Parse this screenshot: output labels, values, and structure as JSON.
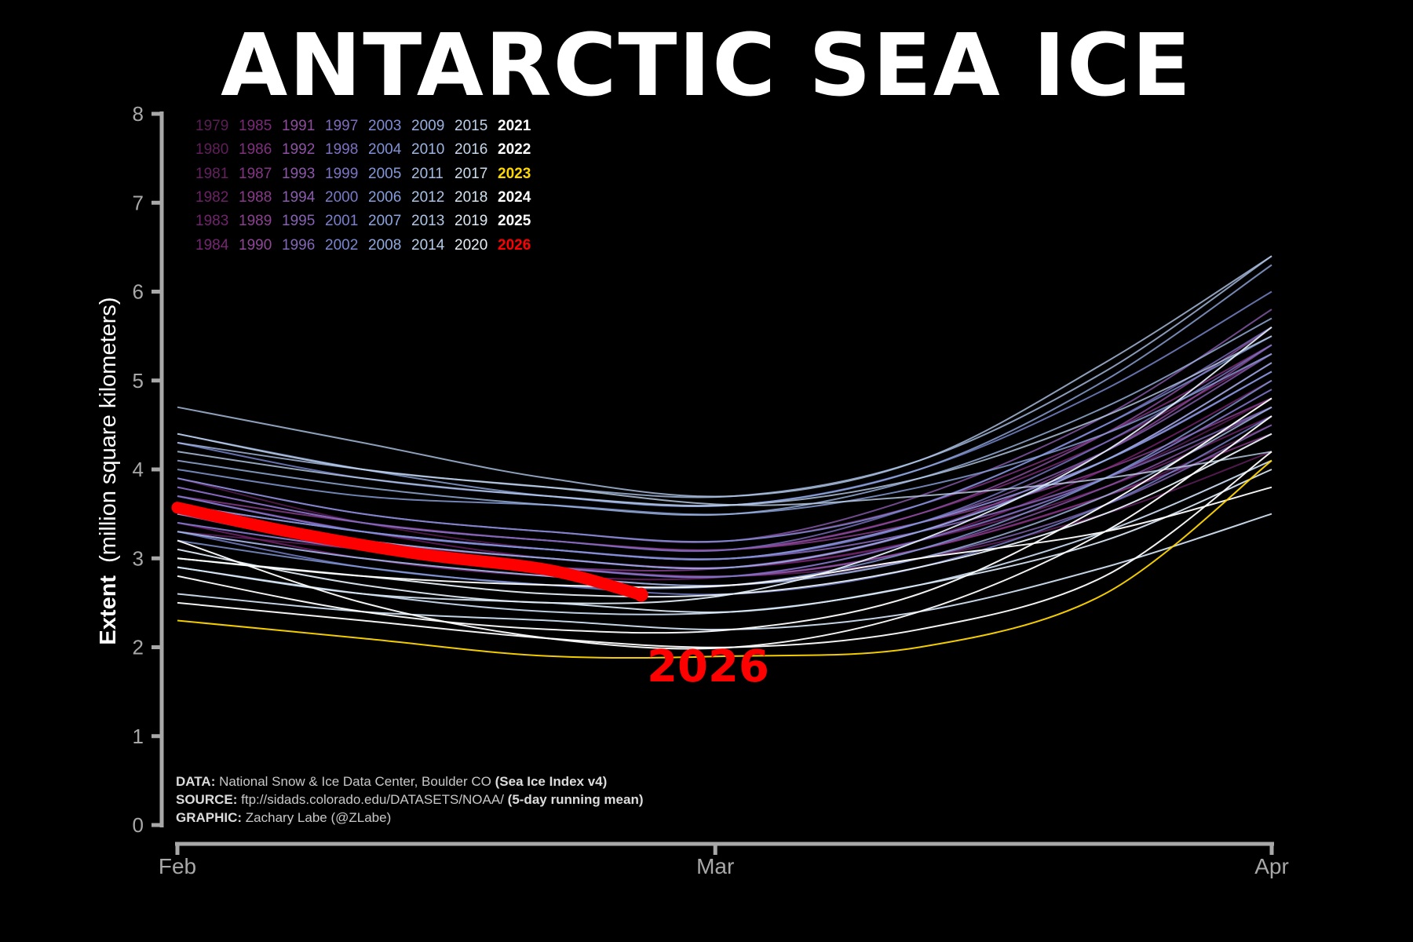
{
  "chart_data": {
    "type": "line",
    "title": "ANTARCTIC SEA ICE",
    "ylabel_bold": "Extent",
    "ylabel_rest": "(million square kilometers)",
    "x_ticks": [
      "Feb",
      "Mar",
      "Apr"
    ],
    "y_ticks": [
      "0",
      "1",
      "2",
      "3",
      "4",
      "5",
      "6",
      "7",
      "8"
    ],
    "ylim": [
      0,
      8
    ],
    "x_domain_days": [
      0,
      59
    ],
    "grid": false,
    "legend_placement": "top-left",
    "highlight_year": "2026",
    "highlight_color": "#ff0000",
    "legend_columns": [
      [
        "1979",
        "1980",
        "1981",
        "1982",
        "1983",
        "1984"
      ],
      [
        "1985",
        "1986",
        "1987",
        "1988",
        "1989",
        "1990"
      ],
      [
        "1991",
        "1992",
        "1993",
        "1994",
        "1995",
        "1996"
      ],
      [
        "1997",
        "1998",
        "1999",
        "2000",
        "2001",
        "2002"
      ],
      [
        "2003",
        "2004",
        "2005",
        "2006",
        "2007",
        "2008"
      ],
      [
        "2009",
        "2010",
        "2011",
        "2012",
        "2013",
        "2014"
      ],
      [
        "2015",
        "2016",
        "2017",
        "2018",
        "2019",
        "2020"
      ],
      [
        "2021",
        "2022",
        "2023",
        "2024",
        "2025",
        "2026"
      ]
    ],
    "year_colors": {
      "1979": "#5a1f55",
      "1980": "#601f5b",
      "1981": "#652060",
      "1982": "#6b2266",
      "1983": "#71246c",
      "1984": "#772672",
      "1985": "#7b2a78",
      "1986": "#80307e",
      "1987": "#853585",
      "1988": "#893a8b",
      "1989": "#8c4091",
      "1990": "#8f4697",
      "1991": "#8f4c9d",
      "1992": "#8e51a3",
      "1993": "#8c56a9",
      "1994": "#8a5cae",
      "1995": "#8761b3",
      "1996": "#8466b8",
      "1997": "#816bbd",
      "1998": "#7e70c2",
      "1999": "#7b75c6",
      "2000": "#7a7bca",
      "2001": "#7a80ce",
      "2002": "#7b86d1",
      "2003": "#7d8cd4",
      "2004": "#7f92d7",
      "2005": "#8398da",
      "2006": "#879edc",
      "2007": "#8ca4de",
      "2008": "#92aae0",
      "2009": "#98b0e2",
      "2010": "#9eb6e4",
      "2011": "#a4bce5",
      "2012": "#abc2e7",
      "2013": "#b1c7e8",
      "2014": "#b8cdea",
      "2015": "#bfd2eb",
      "2016": "#c6d8ed",
      "2017": "#cddef0",
      "2018": "#d5e4f2",
      "2019": "#dde9f4",
      "2020": "#e6eff7",
      "2021": "#ffffff",
      "2022": "#ffffff",
      "2023": "#ffd700",
      "2024": "#ffffff",
      "2025": "#ffffff",
      "2026": "#ff0000"
    },
    "series_points_x": [
      0,
      10,
      20,
      30,
      40,
      50,
      59
    ],
    "series": [
      {
        "name": "1979",
        "values": [
          3.9,
          3.4,
          3.1,
          3.0,
          3.3,
          3.9,
          4.8
        ]
      },
      {
        "name": "1980",
        "values": [
          3.6,
          3.2,
          2.9,
          2.8,
          3.1,
          3.7,
          4.5
        ]
      },
      {
        "name": "1981",
        "values": [
          3.3,
          3.1,
          2.9,
          2.8,
          3.0,
          3.5,
          4.2
        ]
      },
      {
        "name": "1982",
        "values": [
          3.7,
          3.3,
          3.0,
          2.9,
          3.2,
          3.9,
          4.9
        ]
      },
      {
        "name": "1983",
        "values": [
          3.5,
          3.2,
          3.0,
          2.9,
          3.2,
          3.8,
          4.6
        ]
      },
      {
        "name": "1984",
        "values": [
          3.4,
          3.0,
          2.8,
          2.8,
          3.2,
          4.0,
          5.0
        ]
      },
      {
        "name": "1985",
        "values": [
          3.8,
          3.4,
          3.2,
          3.1,
          3.5,
          4.3,
          5.3
        ]
      },
      {
        "name": "1986",
        "values": [
          3.6,
          3.3,
          3.1,
          3.0,
          3.4,
          4.1,
          5.1
        ]
      },
      {
        "name": "1987",
        "values": [
          3.9,
          3.5,
          3.3,
          3.2,
          3.6,
          4.4,
          5.4
        ]
      },
      {
        "name": "1988",
        "values": [
          3.5,
          3.1,
          2.9,
          2.8,
          3.1,
          3.7,
          4.4
        ]
      },
      {
        "name": "1989",
        "values": [
          3.7,
          3.4,
          3.2,
          3.1,
          3.4,
          4.0,
          4.8
        ]
      },
      {
        "name": "1990",
        "values": [
          3.4,
          3.1,
          2.9,
          2.9,
          3.3,
          4.1,
          5.2
        ]
      },
      {
        "name": "1991",
        "values": [
          3.6,
          3.2,
          3.0,
          2.9,
          3.3,
          4.2,
          5.4
        ]
      },
      {
        "name": "1992",
        "values": [
          3.8,
          3.4,
          3.2,
          3.1,
          3.5,
          4.4,
          5.6
        ]
      },
      {
        "name": "1993",
        "values": [
          3.5,
          3.1,
          2.9,
          2.8,
          3.1,
          3.8,
          4.7
        ]
      },
      {
        "name": "1994",
        "values": [
          3.9,
          3.5,
          3.3,
          3.2,
          3.7,
          4.6,
          5.8
        ]
      },
      {
        "name": "1995",
        "values": [
          3.7,
          3.3,
          3.1,
          3.0,
          3.4,
          4.2,
          5.3
        ]
      },
      {
        "name": "1996",
        "values": [
          3.3,
          3.0,
          2.8,
          2.7,
          3.0,
          3.6,
          4.5
        ]
      },
      {
        "name": "1997",
        "values": [
          3.6,
          3.3,
          3.1,
          3.0,
          3.3,
          3.9,
          4.7
        ]
      },
      {
        "name": "1998",
        "values": [
          3.8,
          3.4,
          3.2,
          3.1,
          3.6,
          4.5,
          5.6
        ]
      },
      {
        "name": "1999",
        "values": [
          3.5,
          3.2,
          3.0,
          2.9,
          3.3,
          4.1,
          5.1
        ]
      },
      {
        "name": "2000",
        "values": [
          3.7,
          3.3,
          3.1,
          3.0,
          3.4,
          4.3,
          5.4
        ]
      },
      {
        "name": "2001",
        "values": [
          3.4,
          3.1,
          2.9,
          2.8,
          3.2,
          3.9,
          4.9
        ]
      },
      {
        "name": "2002",
        "values": [
          3.3,
          2.9,
          2.7,
          2.6,
          2.9,
          3.6,
          4.6
        ]
      },
      {
        "name": "2003",
        "values": [
          4.3,
          3.9,
          3.7,
          3.6,
          4.0,
          4.9,
          6.0
        ]
      },
      {
        "name": "2004",
        "values": [
          3.9,
          3.5,
          3.3,
          3.2,
          3.6,
          4.5,
          5.5
        ]
      },
      {
        "name": "2005",
        "values": [
          3.6,
          3.3,
          3.1,
          3.0,
          3.4,
          4.1,
          5.1
        ]
      },
      {
        "name": "2006",
        "values": [
          3.2,
          2.9,
          2.7,
          2.7,
          3.1,
          3.9,
          5.0
        ]
      },
      {
        "name": "2007",
        "values": [
          4.0,
          3.7,
          3.6,
          3.5,
          3.8,
          4.4,
          5.3
        ]
      },
      {
        "name": "2008",
        "values": [
          4.4,
          4.0,
          3.7,
          3.6,
          4.0,
          5.0,
          6.3
        ]
      },
      {
        "name": "2009",
        "values": [
          3.5,
          3.2,
          3.0,
          2.9,
          3.3,
          4.1,
          5.2
        ]
      },
      {
        "name": "2010",
        "values": [
          4.1,
          3.8,
          3.6,
          3.5,
          3.9,
          4.7,
          5.7
        ]
      },
      {
        "name": "2011",
        "values": [
          3.3,
          3.0,
          2.8,
          2.7,
          3.0,
          3.7,
          4.7
        ]
      },
      {
        "name": "2012",
        "values": [
          4.3,
          4.0,
          3.8,
          3.7,
          4.1,
          5.1,
          6.4
        ]
      },
      {
        "name": "2013",
        "values": [
          4.7,
          4.3,
          3.9,
          3.7,
          4.1,
          5.2,
          6.4
        ]
      },
      {
        "name": "2014",
        "values": [
          4.2,
          3.9,
          3.7,
          3.6,
          3.9,
          4.6,
          5.5
        ]
      },
      {
        "name": "2015",
        "values": [
          4.4,
          4.0,
          3.8,
          3.6,
          3.7,
          3.9,
          4.2
        ]
      },
      {
        "name": "2016",
        "values": [
          2.9,
          2.6,
          2.4,
          2.4,
          2.7,
          3.3,
          4.1
        ]
      },
      {
        "name": "2017",
        "values": [
          2.6,
          2.4,
          2.3,
          2.2,
          2.4,
          2.9,
          3.5
        ]
      },
      {
        "name": "2018",
        "values": [
          2.9,
          2.6,
          2.5,
          2.4,
          2.7,
          3.2,
          4.0
        ]
      },
      {
        "name": "2019",
        "values": [
          3.1,
          2.7,
          2.5,
          2.6,
          3.2,
          4.2,
          5.6
        ]
      },
      {
        "name": "2020",
        "values": [
          3.0,
          2.8,
          2.6,
          2.6,
          2.9,
          3.5,
          4.4
        ]
      },
      {
        "name": "2021",
        "values": [
          3.0,
          2.8,
          2.7,
          2.7,
          3.0,
          3.3,
          3.8
        ]
      },
      {
        "name": "2022",
        "values": [
          2.5,
          2.3,
          2.1,
          2.0,
          2.2,
          2.8,
          4.2
        ]
      },
      {
        "name": "2023",
        "values": [
          2.3,
          2.1,
          1.9,
          1.9,
          2.0,
          2.6,
          4.1
        ]
      },
      {
        "name": "2024",
        "values": [
          3.2,
          2.5,
          2.1,
          2.0,
          2.4,
          3.3,
          4.6
        ]
      },
      {
        "name": "2025",
        "values": [
          2.8,
          2.4,
          2.2,
          2.2,
          2.6,
          3.6,
          4.8
        ]
      },
      {
        "name": "2026",
        "values": [
          3.57,
          3.3,
          3.05,
          2.87,
          2.59
        ]
      }
    ],
    "series_2026_x": [
      0,
      6,
      13,
      20,
      25
    ],
    "annotation": "2026"
  },
  "footnotes": [
    {
      "label": "DATA:",
      "text": " National Snow & Ice Data Center, Boulder CO ",
      "bold": "(Sea Ice Index v4)"
    },
    {
      "label": "SOURCE:",
      "text": " ftp://sidads.colorado.edu/DATASETS/NOAA/ ",
      "bold": "(5-day running mean)"
    },
    {
      "label": "GRAPHIC:",
      "text": " Zachary Labe (@ZLabe)",
      "bold": ""
    }
  ]
}
